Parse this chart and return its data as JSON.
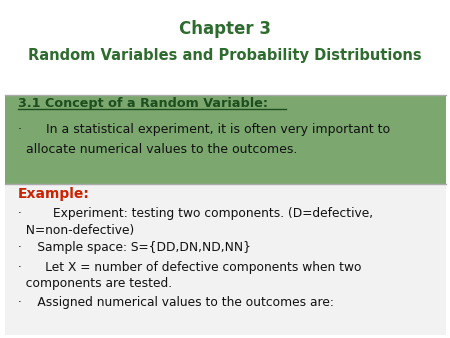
{
  "title_line1": "Chapter 3",
  "title_line2": "Random Variables and Probability Distributions",
  "title_color": "#2E6B2E",
  "bg_color": "#FFFFFF",
  "green_section_bg": "#7CA870",
  "section_title": "3.1 Concept of a Random Variable:",
  "section_title_color": "#1E4E1E",
  "section_body_line1": "·      In a statistical experiment, it is often very important to",
  "section_body_line2": "  allocate numerical values to the outcomes.",
  "section_body_color": "#111111",
  "example_label": "Example:",
  "example_label_color": "#CC2200",
  "example_text_color": "#111111",
  "outer_border_color": "#BBBBBB",
  "sep_color": "#AAAAAA",
  "example_box_color": "#F2F2F2"
}
